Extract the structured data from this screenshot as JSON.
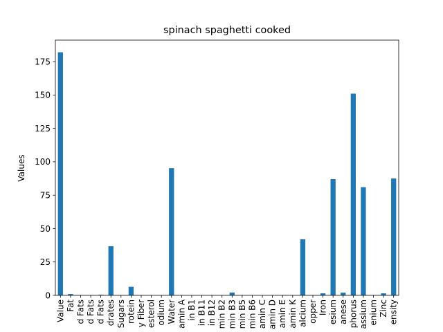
{
  "chart_data": {
    "type": "bar",
    "title": "spinach spaghetti cooked",
    "xlabel": "",
    "ylabel": "Values",
    "ylim": [
      0,
      191.1
    ],
    "yticks": [
      0,
      25,
      50,
      75,
      100,
      125,
      150,
      175
    ],
    "grid": false,
    "legend": "none",
    "bar_color": "#1f77b4",
    "categories": [
      "Value",
      "Fat",
      "d Fats",
      "d Fats",
      "d Fats",
      "drates",
      "Sugars",
      "rotein",
      "y Fiber",
      "esterol",
      "odium",
      "Water",
      "amin A",
      "in B1",
      "in B11",
      "in B12",
      "min B2",
      "min B3",
      "min B5",
      "min B6",
      "amin C",
      "amin D",
      "amin E",
      "amin K",
      "alcium",
      "opper",
      "Iron",
      "esium",
      "anese",
      "phorus",
      "assium",
      "enium",
      "Zinc",
      "ensity"
    ],
    "values": [
      182,
      1,
      0.1,
      0.1,
      0.4,
      36.8,
      0,
      6.4,
      0,
      0,
      0,
      95.2,
      0,
      0,
      0,
      0,
      0,
      2.1,
      0,
      0,
      0,
      0,
      0,
      0,
      42,
      0.1,
      1.5,
      87,
      2,
      151,
      81,
      0.1,
      1.5,
      87.5
    ]
  }
}
